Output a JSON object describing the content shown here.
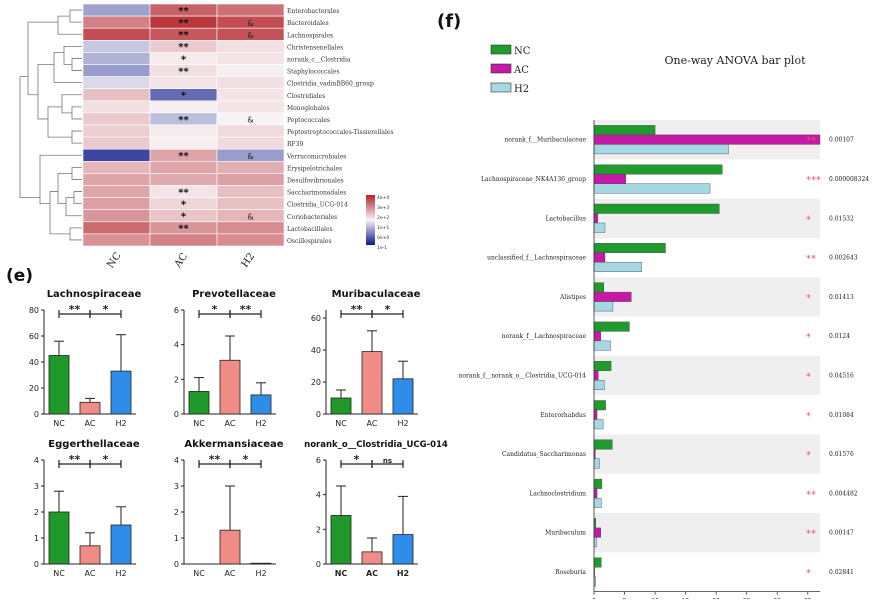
{
  "panel_labels": {
    "e": "(e)",
    "f": "(f)"
  },
  "heatmap": {
    "columns": [
      "NC",
      "AC",
      "H2"
    ],
    "rows": [
      {
        "taxon": "Enterobacterales",
        "values": [
          -1.5,
          2.8,
          2.5
        ],
        "ac_sig": "**",
        "h2_sig": ""
      },
      {
        "taxon": "Bacteroidales",
        "values": [
          2.2,
          3.6,
          3.2
        ],
        "ac_sig": "**",
        "h2_sig": "&"
      },
      {
        "taxon": "Lachnospirales",
        "values": [
          3.2,
          3.0,
          3.1
        ],
        "ac_sig": "**",
        "h2_sig": "&"
      },
      {
        "taxon": "Christensenellales",
        "values": [
          -0.8,
          0.8,
          0.4
        ],
        "ac_sig": "**",
        "h2_sig": ""
      },
      {
        "taxon": "norank_c__Clostridia",
        "values": [
          -1.2,
          0.2,
          0.3
        ],
        "ac_sig": "*",
        "h2_sig": ""
      },
      {
        "taxon": "Staphylococcales",
        "values": [
          -1.6,
          0.4,
          0.1
        ],
        "ac_sig": "**",
        "h2_sig": ""
      },
      {
        "taxon": "Clostridia_vadinBB60_group",
        "values": [
          -0.5,
          0.3,
          0.4
        ],
        "ac_sig": "",
        "h2_sig": ""
      },
      {
        "taxon": "Clostridiales",
        "values": [
          1.0,
          -2.5,
          0.3
        ],
        "ac_sig": "*",
        "h2_sig": ""
      },
      {
        "taxon": "Monoglobales",
        "values": [
          0.4,
          0.1,
          0.3
        ],
        "ac_sig": "",
        "h2_sig": ""
      },
      {
        "taxon": "Peptococcales",
        "values": [
          0.8,
          -1.0,
          0.0
        ],
        "ac_sig": "**",
        "h2_sig": "&"
      },
      {
        "taxon": "Peptostreptococcales-Tissierellales",
        "values": [
          0.7,
          0.2,
          0.5
        ],
        "ac_sig": "",
        "h2_sig": ""
      },
      {
        "taxon": "RF39",
        "values": [
          0.8,
          0.1,
          0.5
        ],
        "ac_sig": "",
        "h2_sig": ""
      },
      {
        "taxon": "Verrucomicrobiales",
        "values": [
          -3.2,
          1.5,
          -1.6
        ],
        "ac_sig": "**",
        "h2_sig": "&"
      },
      {
        "taxon": "Erysipelotrichales",
        "values": [
          1.2,
          1.5,
          1.3
        ],
        "ac_sig": "",
        "h2_sig": ""
      },
      {
        "taxon": "Desulfovibrionales",
        "values": [
          1.5,
          1.4,
          1.6
        ],
        "ac_sig": "",
        "h2_sig": ""
      },
      {
        "taxon": "Saccharimonadales",
        "values": [
          1.5,
          0.3,
          1.0
        ],
        "ac_sig": "**",
        "h2_sig": ""
      },
      {
        "taxon": "Clostridia_UCG-014",
        "values": [
          1.6,
          0.6,
          1.0
        ],
        "ac_sig": "*",
        "h2_sig": ""
      },
      {
        "taxon": "Coriobacteriales",
        "values": [
          1.8,
          0.9,
          1.2
        ],
        "ac_sig": "*",
        "h2_sig": "&"
      },
      {
        "taxon": "Lactobacillales",
        "values": [
          2.6,
          1.8,
          2.0
        ],
        "ac_sig": "**",
        "h2_sig": ""
      },
      {
        "taxon": "Oscillospirales",
        "values": [
          1.9,
          2.2,
          2.0
        ],
        "ac_sig": "",
        "h2_sig": ""
      }
    ],
    "scale_labels": [
      "4e+4",
      "3e+3",
      "2e+2",
      "1e+1",
      "0e+0",
      "1e-1"
    ],
    "colors": {
      "low": "#0a1a8a",
      "mid": "#f8f4f6",
      "high": "#b4232a"
    }
  },
  "bar_panels": [
    {
      "title": "Lachnospiraceae",
      "categories": [
        "NC",
        "AC",
        "H2"
      ],
      "values": [
        45,
        9,
        33
      ],
      "errors": [
        11,
        3,
        28
      ],
      "yticks": [
        "0",
        "20",
        "40",
        "60",
        "80"
      ],
      "ylim": [
        0,
        80
      ],
      "sig": [
        "**",
        "*"
      ]
    },
    {
      "title": "Prevotellaceae",
      "categories": [
        "NC",
        "AC",
        "H2"
      ],
      "values": [
        1.3,
        3.1,
        1.1
      ],
      "errors": [
        0.8,
        1.4,
        0.7
      ],
      "yticks": [
        "0",
        "2",
        "4",
        "6"
      ],
      "ylim": [
        0,
        6
      ],
      "sig": [
        "*",
        "**"
      ]
    },
    {
      "title": "Muribaculaceae",
      "categories": [
        "NC",
        "AC",
        "H2"
      ],
      "values": [
        10,
        39,
        22
      ],
      "errors": [
        5,
        13,
        11
      ],
      "yticks": [
        "0",
        "20",
        "40",
        "60"
      ],
      "ylim": [
        0,
        65
      ],
      "sig": [
        "**",
        "*"
      ]
    },
    {
      "title": "Eggerthellaceae",
      "categories": [
        "NC",
        "AC",
        "H2"
      ],
      "values": [
        2.0,
        0.7,
        1.5
      ],
      "errors": [
        0.8,
        0.5,
        0.7
      ],
      "yticks": [
        "0",
        "1",
        "2",
        "3",
        "4"
      ],
      "ylim": [
        0,
        4
      ],
      "sig": [
        "**",
        "*"
      ]
    },
    {
      "title": "Akkermansiaceae",
      "categories": [
        "NC",
        "AC",
        "H2"
      ],
      "values": [
        0.0,
        1.3,
        0.03
      ],
      "errors": [
        0.0,
        1.7,
        0.0
      ],
      "yticks": [
        "0",
        "1",
        "2",
        "3",
        "4"
      ],
      "ylim": [
        0,
        4
      ],
      "sig": [
        "**",
        "*"
      ]
    },
    {
      "title": "norank_o__Clostridia_UCG-014",
      "categories": [
        "NC",
        "AC",
        "H2"
      ],
      "values": [
        2.8,
        0.7,
        1.7
      ],
      "errors": [
        1.7,
        0.8,
        2.2
      ],
      "yticks": [
        "0",
        "2",
        "4",
        "6"
      ],
      "ylim": [
        0,
        6
      ],
      "sig": [
        "*",
        "ns"
      ]
    }
  ],
  "bar_colors": {
    "NC": "#1f9a2a",
    "AC": "#f08c86",
    "H2": "#2d8de8"
  },
  "anova": {
    "title": "One-way ANOVA bar plot",
    "legend": [
      {
        "label": "NC",
        "color": "#1e9b2c"
      },
      {
        "label": "AC",
        "color": "#c41aa6"
      },
      {
        "label": "H2",
        "color": "#a6d8e4"
      }
    ],
    "xlabel": "Mean proportions(%)",
    "xticks": [
      "0",
      "5",
      "10",
      "15",
      "20",
      "25",
      "30",
      "35"
    ],
    "xlim": [
      0,
      37
    ],
    "rows": [
      {
        "taxon": "norank_f__Muribaculaceae",
        "NC": 10,
        "AC": 37,
        "H2": 22,
        "sig": "**",
        "p": "0.00107"
      },
      {
        "taxon": "Lachnospiraceae_NK4A136_group",
        "NC": 21,
        "AC": 5.2,
        "H2": 19,
        "sig": "***",
        "p": "0.000008324"
      },
      {
        "taxon": "Lactobacillus",
        "NC": 20.5,
        "AC": 0.6,
        "H2": 1.8,
        "sig": "*",
        "p": "0.01532"
      },
      {
        "taxon": "unclassified_f__Lachnospiraceae",
        "NC": 11.7,
        "AC": 1.8,
        "H2": 7.8,
        "sig": "**",
        "p": "0.002643"
      },
      {
        "taxon": "Alistipes",
        "NC": 1.6,
        "AC": 6.1,
        "H2": 3.1,
        "sig": "*",
        "p": "0.01413"
      },
      {
        "taxon": "norank_f__Lachnospiraceae",
        "NC": 5.8,
        "AC": 1.1,
        "H2": 2.7,
        "sig": "*",
        "p": "0.0124"
      },
      {
        "taxon": "norank_f__norank_o__Clostridia_UCG-014",
        "NC": 2.8,
        "AC": 0.7,
        "H2": 1.7,
        "sig": "*",
        "p": "0.04516"
      },
      {
        "taxon": "Enterorhabdus",
        "NC": 1.9,
        "AC": 0.5,
        "H2": 1.5,
        "sig": "*",
        "p": "0.01084"
      },
      {
        "taxon": "Candidatus_Saccharimonas",
        "NC": 3.0,
        "AC": 0.2,
        "H2": 0.9,
        "sig": "*",
        "p": "0.01576"
      },
      {
        "taxon": "Lachnoclostridium",
        "NC": 1.3,
        "AC": 0.5,
        "H2": 1.2,
        "sig": "**",
        "p": "0.004482"
      },
      {
        "taxon": "Muribaculum",
        "NC": 0.3,
        "AC": 1.1,
        "H2": 0.4,
        "sig": "**",
        "p": "0.00147"
      },
      {
        "taxon": "Roseburia",
        "NC": 1.2,
        "AC": 0.1,
        "H2": 0.3,
        "sig": "*",
        "p": "0.02841"
      }
    ]
  }
}
